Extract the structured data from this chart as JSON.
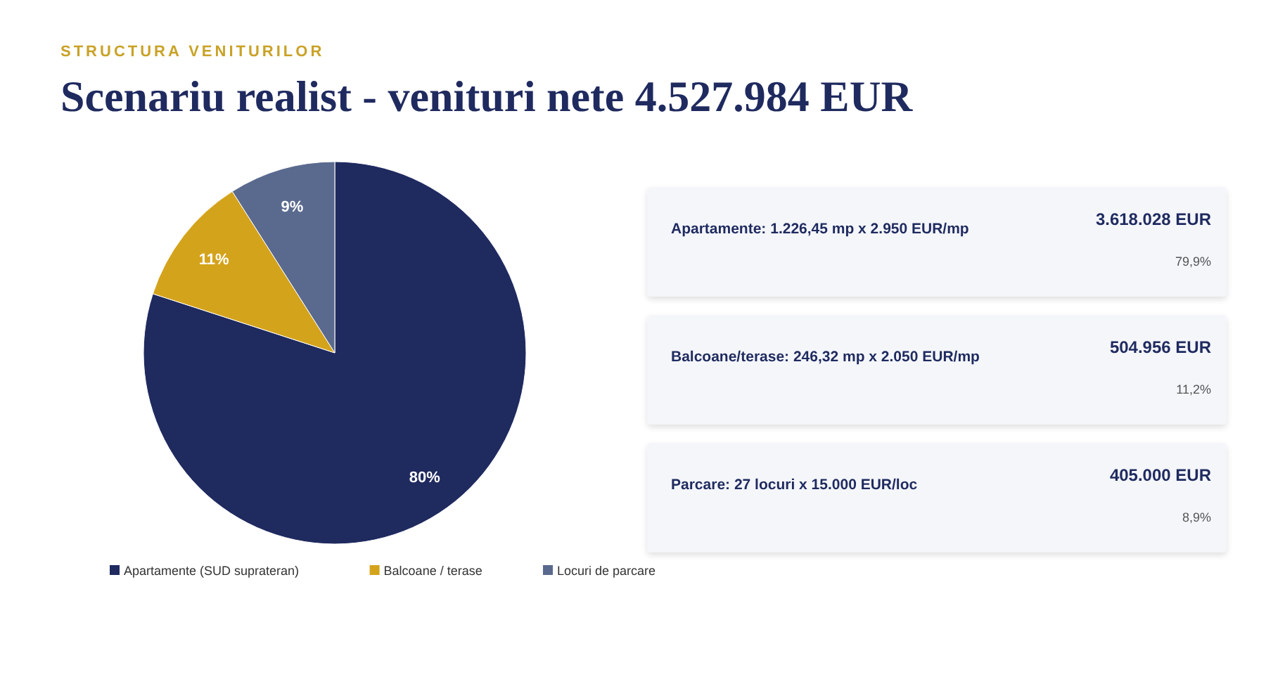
{
  "chart_data": [
    {
      "type": "pie",
      "subtitle": "STRUCTURA VENITURILOR",
      "title": "Scenariu realist - venituri nete 4.527.984 EUR",
      "categories": [
        "Apartamente (SUD suprateran)",
        "Balcoane / terase",
        "Locuri de parcare"
      ],
      "values": [
        80,
        11,
        9
      ],
      "colors": [
        "#1f2a5f",
        "#d4a31c",
        "#5a6a8e"
      ],
      "value_labels": [
        "80%",
        "11%",
        "9%"
      ],
      "legend": "bottom"
    },
    {
      "type": "other",
      "annotations": [
        "Apartamente: 1.226,45 mp x 2.950 EUR/mp",
        "3.618.028 EUR",
        "79,9%",
        "Balcoane/terase: 246,32 mp x 2.050 EUR/mp",
        "504.956 EUR",
        "11,2%",
        "Parcare: 27 locuri x 15.000 EUR/loc",
        "405.000 EUR",
        "8,9%"
      ]
    }
  ]
}
